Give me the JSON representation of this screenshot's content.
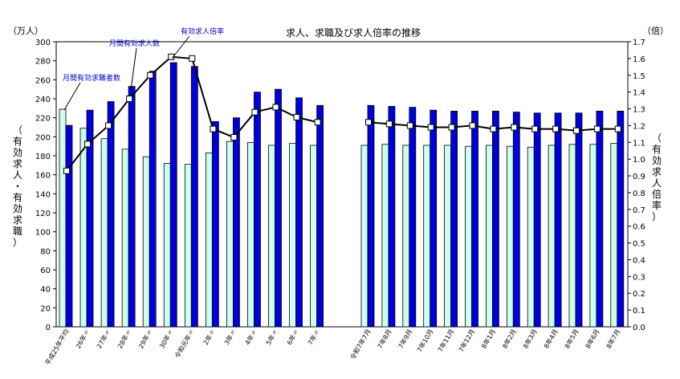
{
  "chart_data": {
    "type": "bar",
    "title": "求人、求職及び求人倍率の推移",
    "y_left_unit": "（万人）",
    "y_right_unit": "（倍）",
    "y_left_label": "（有効求人・有効求職）",
    "y_right_label": "（有効求人倍率）",
    "ylim_left": [
      0,
      300
    ],
    "ylim_right": [
      0.0,
      1.7
    ],
    "yticks_left": [
      "0",
      "20",
      "40",
      "60",
      "80",
      "100",
      "120",
      "140",
      "160",
      "180",
      "200",
      "220",
      "240",
      "260",
      "280",
      "300"
    ],
    "yticks_right": [
      "0.0",
      "0.1",
      "0.2",
      "0.3",
      "0.4",
      "0.5",
      "0.6",
      "0.7",
      "0.8",
      "0.9",
      "1.0",
      "1.1",
      "1.2",
      "1.3",
      "1.4",
      "1.5",
      "1.6",
      "1.7"
    ],
    "categories": [
      "平成25年平均",
      "26年〃",
      "27年〃",
      "28年〃",
      "29年〃",
      "30年〃",
      "令和元年〃",
      "2年〃",
      "3年〃",
      "4年〃",
      "5年〃",
      "6年〃",
      "7年〃",
      "令和7年7月",
      "7年8月",
      "7年9月",
      "7年10月",
      "7年11月",
      "7年12月",
      "8年1月",
      "8年2月",
      "8年3月",
      "8年4月",
      "8年5月",
      "8年6月",
      "8年7月"
    ],
    "series": [
      {
        "name": "月間有効求職者数",
        "type": "bar",
        "color": "#ccffee",
        "values": [
          229,
          209,
          198,
          187,
          179,
          172,
          171,
          183,
          195,
          194,
          191,
          193,
          191,
          191,
          192,
          191,
          191,
          191,
          190,
          191,
          190,
          189,
          191,
          192,
          192,
          193
        ]
      },
      {
        "name": "月間有効求人数",
        "type": "bar",
        "color": "#0000dd",
        "values": [
          212,
          228,
          237,
          253,
          269,
          278,
          274,
          216,
          220,
          247,
          250,
          241,
          233,
          233,
          232,
          231,
          228,
          227,
          227,
          227,
          226,
          225,
          225,
          225,
          227,
          227
        ]
      },
      {
        "name": "有効求人倍率",
        "type": "line",
        "axis": "right",
        "color": "#000000",
        "values": [
          0.93,
          1.09,
          1.2,
          1.36,
          1.5,
          1.61,
          1.6,
          1.18,
          1.13,
          1.28,
          1.31,
          1.25,
          1.22,
          1.22,
          1.21,
          1.2,
          1.19,
          1.19,
          1.2,
          1.18,
          1.19,
          1.18,
          1.18,
          1.17,
          1.18,
          1.18
        ]
      }
    ]
  }
}
